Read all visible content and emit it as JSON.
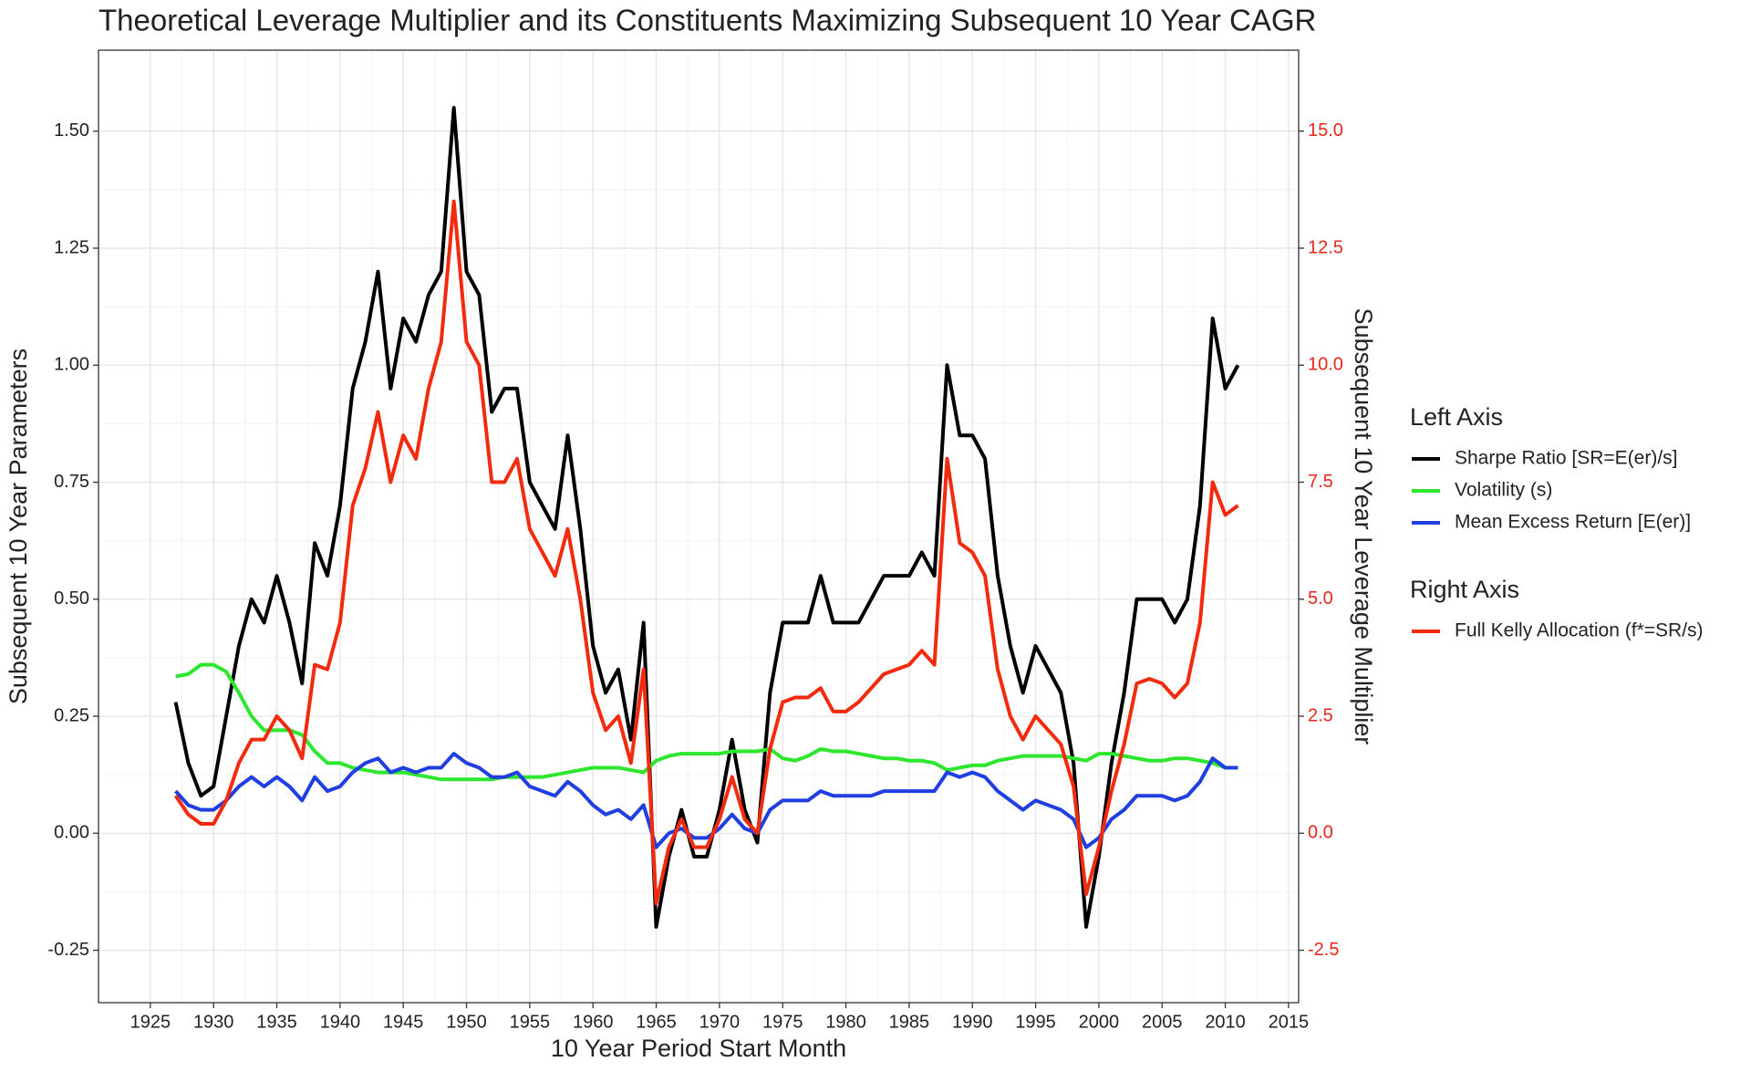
{
  "chart_data": {
    "type": "line",
    "title": "Theoretical Leverage Multiplier and its Constituents Maximizing Subsequent 10 Year CAGR",
    "x_label": "10 Year Period Start Month",
    "y_label": "Subsequent 10 Year Parameters",
    "y2_label": "Subsequent 10 Year Leverage Multiplier",
    "legend_titles": {
      "y": "Left Axis",
      "y2": "Right Axis"
    },
    "legend_position": "right",
    "grid": true,
    "y2_tick_color": "#e8251a",
    "xlim": [
      1920.9,
      2015.8
    ],
    "xticks": [
      1925,
      1930,
      1935,
      1940,
      1945,
      1950,
      1955,
      1960,
      1965,
      1970,
      1975,
      1980,
      1985,
      1990,
      1995,
      2000,
      2005,
      2010,
      2015
    ],
    "ylim": [
      -0.362,
      1.673
    ],
    "yticks": [
      -0.25,
      {
        "value": 0,
        "label": "0.00"
      },
      0.25,
      {
        "value": 0.5,
        "label": "0.50"
      },
      0.75,
      {
        "value": 1,
        "label": "1.00"
      },
      1.25,
      {
        "value": 1.5,
        "label": "1.50"
      }
    ],
    "y2lim": [
      -3.62,
      16.73
    ],
    "y2ticks": [
      -2.5,
      {
        "value": 0,
        "label": "0.0"
      },
      2.5,
      {
        "value": 5,
        "label": "5.0"
      },
      7.5,
      {
        "value": 10,
        "label": "10.0"
      },
      12.5,
      {
        "value": 15,
        "label": "15.0"
      }
    ],
    "x": [
      1927,
      1928,
      1929,
      1930,
      1931,
      1932,
      1933,
      1934,
      1935,
      1936,
      1937,
      1938,
      1939,
      1940,
      1941,
      1942,
      1943,
      1944,
      1945,
      1946,
      1947,
      1948,
      1949,
      1950,
      1951,
      1952,
      1953,
      1954,
      1955,
      1956,
      1957,
      1958,
      1959,
      1960,
      1961,
      1962,
      1963,
      1964,
      1965,
      1966,
      1967,
      1968,
      1969,
      1970,
      1971,
      1972,
      1973,
      1974,
      1975,
      1976,
      1977,
      1978,
      1979,
      1980,
      1981,
      1982,
      1983,
      1984,
      1985,
      1986,
      1987,
      1988,
      1989,
      1990,
      1991,
      1992,
      1993,
      1994,
      1995,
      1996,
      1997,
      1998,
      1999,
      2000,
      2001,
      2002,
      2003,
      2004,
      2005,
      2006,
      2007,
      2008,
      2009,
      2010,
      2011
    ],
    "series": [
      {
        "name": "Sharpe Ratio [SR=E(er)/s]",
        "color": "#000000",
        "axis": "y",
        "values": [
          0.28,
          0.15,
          0.08,
          0.1,
          0.25,
          0.4,
          0.5,
          0.45,
          0.55,
          0.45,
          0.32,
          0.62,
          0.55,
          0.7,
          0.95,
          1.05,
          1.2,
          0.95,
          1.1,
          1.05,
          1.15,
          1.2,
          1.55,
          1.2,
          1.15,
          0.9,
          0.95,
          0.95,
          0.75,
          0.7,
          0.65,
          0.85,
          0.65,
          0.4,
          0.3,
          0.35,
          0.2,
          0.45,
          -0.2,
          -0.05,
          0.05,
          -0.05,
          -0.05,
          0.05,
          0.2,
          0.05,
          -0.02,
          0.3,
          0.45,
          0.45,
          0.45,
          0.55,
          0.45,
          0.45,
          0.45,
          0.5,
          0.55,
          0.55,
          0.55,
          0.6,
          0.55,
          1.0,
          0.85,
          0.85,
          0.8,
          0.55,
          0.4,
          0.3,
          0.4,
          0.35,
          0.3,
          0.15,
          -0.2,
          -0.05,
          0.15,
          0.3,
          0.5,
          0.5,
          0.5,
          0.45,
          0.5,
          0.7,
          1.1,
          0.95,
          1.0
        ]
      },
      {
        "name": "Volatility (s)",
        "color": "#2ee62e",
        "axis": "y",
        "values": [
          0.335,
          0.34,
          0.36,
          0.36,
          0.345,
          0.3,
          0.25,
          0.22,
          0.22,
          0.22,
          0.21,
          0.175,
          0.15,
          0.15,
          0.14,
          0.135,
          0.13,
          0.13,
          0.13,
          0.125,
          0.12,
          0.115,
          0.115,
          0.115,
          0.115,
          0.115,
          0.12,
          0.12,
          0.12,
          0.12,
          0.125,
          0.13,
          0.135,
          0.14,
          0.14,
          0.14,
          0.135,
          0.13,
          0.155,
          0.165,
          0.17,
          0.17,
          0.17,
          0.17,
          0.175,
          0.175,
          0.175,
          0.18,
          0.16,
          0.155,
          0.165,
          0.18,
          0.175,
          0.175,
          0.17,
          0.165,
          0.16,
          0.16,
          0.155,
          0.155,
          0.15,
          0.135,
          0.14,
          0.145,
          0.145,
          0.155,
          0.16,
          0.165,
          0.165,
          0.165,
          0.165,
          0.16,
          0.155,
          0.17,
          0.17,
          0.165,
          0.16,
          0.155,
          0.155,
          0.16,
          0.16,
          0.155,
          0.15,
          0.14,
          0.14
        ]
      },
      {
        "name": "Mean Excess Return [E(er)]",
        "color": "#1f3fe0",
        "axis": "y",
        "values": [
          0.09,
          0.06,
          0.05,
          0.05,
          0.07,
          0.1,
          0.12,
          0.1,
          0.12,
          0.1,
          0.07,
          0.12,
          0.09,
          0.1,
          0.13,
          0.15,
          0.16,
          0.13,
          0.14,
          0.13,
          0.14,
          0.14,
          0.17,
          0.15,
          0.14,
          0.12,
          0.12,
          0.13,
          0.1,
          0.09,
          0.08,
          0.11,
          0.09,
          0.06,
          0.04,
          0.05,
          0.03,
          0.06,
          -0.03,
          0.0,
          0.01,
          -0.01,
          -0.01,
          0.01,
          0.04,
          0.01,
          0.0,
          0.05,
          0.07,
          0.07,
          0.07,
          0.09,
          0.08,
          0.08,
          0.08,
          0.08,
          0.09,
          0.09,
          0.09,
          0.09,
          0.09,
          0.13,
          0.12,
          0.13,
          0.12,
          0.09,
          0.07,
          0.05,
          0.07,
          0.06,
          0.05,
          0.03,
          -0.03,
          -0.01,
          0.03,
          0.05,
          0.08,
          0.08,
          0.08,
          0.07,
          0.08,
          0.11,
          0.16,
          0.14,
          0.14
        ]
      },
      {
        "name": "Full Kelly Allocation (f*=SR/s)",
        "color": "#f22b0f",
        "axis": "y2",
        "values": [
          0.8,
          0.4,
          0.2,
          0.2,
          0.7,
          1.5,
          2.0,
          2.0,
          2.5,
          2.2,
          1.6,
          3.6,
          3.5,
          4.5,
          7.0,
          7.8,
          9.0,
          7.5,
          8.5,
          8.0,
          9.5,
          10.5,
          13.5,
          10.5,
          10.0,
          7.5,
          7.5,
          8.0,
          6.5,
          6.0,
          5.5,
          6.5,
          5.0,
          3.0,
          2.2,
          2.5,
          1.5,
          3.5,
          -1.5,
          -0.3,
          0.3,
          -0.3,
          -0.3,
          0.3,
          1.2,
          0.3,
          0.0,
          1.8,
          2.8,
          2.9,
          2.9,
          3.1,
          2.6,
          2.6,
          2.8,
          3.1,
          3.4,
          3.5,
          3.6,
          3.9,
          3.6,
          8.0,
          6.2,
          6.0,
          5.5,
          3.5,
          2.5,
          2.0,
          2.5,
          2.2,
          1.9,
          1.0,
          -1.3,
          -0.3,
          0.9,
          1.9,
          3.2,
          3.3,
          3.2,
          2.9,
          3.2,
          4.5,
          7.5,
          6.8,
          7.0
        ]
      }
    ]
  }
}
